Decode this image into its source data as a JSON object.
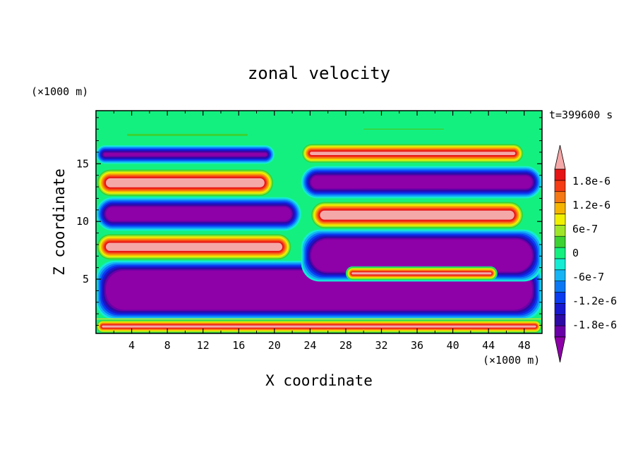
{
  "chart_data": {
    "type": "heatmap",
    "title": "zonal velocity",
    "xlabel": "X coordinate",
    "ylabel": "Z coordinate",
    "x_unit": "(×1000 m)",
    "y_unit": "(×1000 m)",
    "time_label": "t=399600 s",
    "xlim": [
      0,
      50
    ],
    "ylim": [
      0.3,
      19.6
    ],
    "x_ticks": [
      4,
      8,
      12,
      16,
      20,
      24,
      28,
      32,
      36,
      40,
      44,
      48
    ],
    "y_ticks": [
      5,
      10,
      15
    ],
    "colorbar": {
      "levels": [
        -2.1e-06,
        -1.8e-06,
        -1.5e-06,
        -1.2e-06,
        -9e-07,
        -6e-07,
        -3e-07,
        0,
        3e-07,
        6e-07,
        9e-07,
        1.2e-06,
        1.5e-06,
        1.8e-06,
        2.1e-06
      ],
      "labels": [
        {
          "value": 1.8e-06,
          "text": "1.8e-6"
        },
        {
          "value": 1.2e-06,
          "text": "1.2e-6"
        },
        {
          "value": 6e-07,
          "text": "6e-7"
        },
        {
          "value": 0,
          "text": "0"
        },
        {
          "value": -6e-07,
          "text": "-6e-7"
        },
        {
          "value": -1.2e-06,
          "text": "-1.2e-6"
        },
        {
          "value": -1.8e-06,
          "text": "-1.8e-6"
        }
      ],
      "colors": [
        "#6a00a8",
        "#2d0aa6",
        "#1818d0",
        "#0a3cf0",
        "#0a78f5",
        "#14b4f5",
        "#14ecd4",
        "#14f080",
        "#3cd232",
        "#a0e628",
        "#f0f000",
        "#f5b400",
        "#f57814",
        "#f53c14",
        "#e61414"
      ],
      "min_color": "#8e00a8",
      "max_color": "#f5a8a8"
    },
    "regions": [
      {
        "value": 3e-07,
        "x": [
          0,
          50
        ],
        "z": [
          17.0,
          19.6
        ],
        "sign": "positive-weak"
      },
      {
        "value": -2.2e-06,
        "x": [
          0,
          20
        ],
        "z": [
          15.0,
          16.6
        ],
        "sign": "negative"
      },
      {
        "value": 2.2e-06,
        "x": [
          0,
          20
        ],
        "z": [
          12.1,
          14.6
        ],
        "sign": "positive"
      },
      {
        "value": -2.2e-06,
        "x": [
          0,
          23
        ],
        "z": [
          9.2,
          12.1
        ],
        "sign": "negative"
      },
      {
        "value": 2.2e-06,
        "x": [
          0,
          22
        ],
        "z": [
          6.6,
          9.0
        ],
        "sign": "positive"
      },
      {
        "value": -2.2e-06,
        "x": [
          0,
          50
        ],
        "z": [
          1.5,
          6.6
        ],
        "sign": "negative"
      },
      {
        "value": 2.2e-06,
        "x": [
          0,
          50
        ],
        "z": [
          0.3,
          1.5
        ],
        "sign": "positive"
      },
      {
        "value": 2.2e-06,
        "x": [
          23,
          48
        ],
        "z": [
          15.0,
          16.8
        ],
        "sign": "positive"
      },
      {
        "value": -2.2e-06,
        "x": [
          23,
          50
        ],
        "z": [
          12.0,
          14.8
        ],
        "sign": "negative"
      },
      {
        "value": 2.2e-06,
        "x": [
          24,
          48
        ],
        "z": [
          9.3,
          11.8
        ],
        "sign": "positive"
      },
      {
        "value": -2.2e-06,
        "x": [
          23,
          50
        ],
        "z": [
          4.8,
          9.3
        ],
        "sign": "negative"
      },
      {
        "value": 2.2e-06,
        "x": [
          28,
          45
        ],
        "z": [
          4.9,
          6.1
        ],
        "sign": "positive"
      }
    ]
  }
}
